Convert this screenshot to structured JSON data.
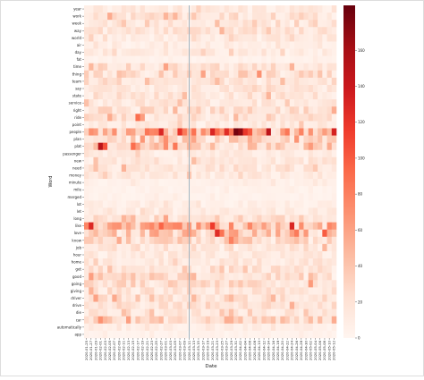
{
  "chart_data": {
    "type": "heatmap",
    "xlabel": "Date",
    "ylabel": "Word",
    "words": [
      "year",
      "work",
      "week",
      "way",
      "world",
      "air",
      "day",
      "fat",
      "time",
      "thing",
      "team",
      "say",
      "state",
      "service",
      "right",
      "ride",
      "point",
      "people",
      "plan",
      "plat",
      "passenger",
      "new",
      "need",
      "money",
      "minute",
      "mile",
      "merged",
      "lot",
      "let",
      "long",
      "like",
      "love",
      "know",
      "job",
      "hour",
      "home",
      "get",
      "good",
      "going",
      "giving",
      "driver",
      "drive",
      "die",
      "car",
      "automatically",
      "app"
    ],
    "dates": [
      "2020-01-25",
      "2020-01-27",
      "2020-01-29",
      "2020-02-01",
      "2020-02-03",
      "2020-02-05",
      "2020-02-07",
      "2020-02-09",
      "2020-02-11",
      "2020-02-13",
      "2020-02-15",
      "2020-02-17",
      "2020-02-19",
      "2020-02-21",
      "2020-02-23",
      "2020-02-25",
      "2020-02-27",
      "2020-03-01",
      "2020-03-03",
      "2020-03-05",
      "2020-03-07",
      "2020-03-09",
      "2020-03-11",
      "2020-03-13",
      "2020-03-15",
      "2020-03-17",
      "2020-03-19",
      "2020-03-21",
      "2020-03-23",
      "2020-03-25",
      "2020-03-27",
      "2020-03-29",
      "2020-03-31",
      "2020-04-02",
      "2020-04-04",
      "2020-04-06",
      "2020-04-08",
      "2020-04-10",
      "2020-04-12",
      "2020-04-14",
      "2020-04-16",
      "2020-04-18",
      "2020-04-20",
      "2020-04-22",
      "2020-04-24",
      "2020-04-26",
      "2020-04-28",
      "2020-04-30",
      "2020-05-02",
      "2020-05-04",
      "2020-05-06",
      "2020-05-08",
      "2020-05-10",
      "2020-05-12"
    ],
    "vmin": 0,
    "vmax": 185,
    "colorbar_ticks": [
      0,
      20,
      40,
      60,
      80,
      100,
      120,
      140,
      160
    ],
    "colormap": [
      "#fff5f0",
      "#fee0d2",
      "#fcbba1",
      "#fc9272",
      "#fb6a4a",
      "#ef3b2c",
      "#cb181d",
      "#a50f15",
      "#67000d"
    ],
    "row_base": [
      14,
      20,
      16,
      18,
      14,
      8,
      12,
      4,
      22,
      26,
      20,
      16,
      18,
      16,
      22,
      20,
      14,
      55,
      28,
      34,
      12,
      16,
      18,
      14,
      6,
      4,
      4,
      8,
      12,
      24,
      48,
      40,
      28,
      18,
      14,
      16,
      20,
      22,
      24,
      18,
      22,
      20,
      16,
      34,
      8,
      4
    ],
    "highlights": [
      {
        "word": "people",
        "date": "2020-03-31",
        "value": 180
      },
      {
        "word": "people",
        "date": "2020-04-02",
        "value": 170
      },
      {
        "word": "people",
        "date": "2020-03-07",
        "value": 120
      },
      {
        "word": "people",
        "date": "2020-03-21",
        "value": 130
      },
      {
        "word": "people",
        "date": "2020-03-27",
        "value": 125
      },
      {
        "word": "plat",
        "date": "2020-02-01",
        "value": 150
      },
      {
        "word": "plat",
        "date": "2020-02-15",
        "value": 90
      },
      {
        "word": "love",
        "date": "2020-03-23",
        "value": 125
      },
      {
        "word": "like",
        "date": "2020-02-27",
        "value": 95
      },
      {
        "word": "ride",
        "date": "2020-02-17",
        "value": 90
      },
      {
        "word": "know",
        "date": "2020-03-29",
        "value": 80
      },
      {
        "word": "car",
        "date": "2020-02-01",
        "value": 70
      }
    ],
    "divider_date": "2020-03-11"
  }
}
